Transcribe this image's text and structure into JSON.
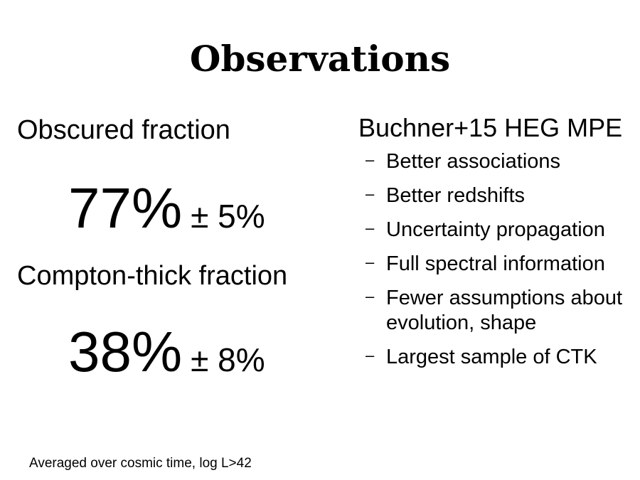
{
  "title": "Observations",
  "stats": [
    {
      "label": "Obscured fraction",
      "value": "77%",
      "error": "± 5%"
    },
    {
      "label": "Compton-thick fraction",
      "value": "38%",
      "error": "± 8%"
    }
  ],
  "right": {
    "heading": "Buchner+15 HEG MPE",
    "bullet_symbol": "–",
    "bullets": [
      "Better associations",
      "Better redshifts",
      "Uncertainty propagation",
      "Full spectral information",
      "Fewer assumptions about evolution, shape",
      "Largest sample of CTK"
    ]
  },
  "footnote": "Averaged over cosmic time, log L>42"
}
